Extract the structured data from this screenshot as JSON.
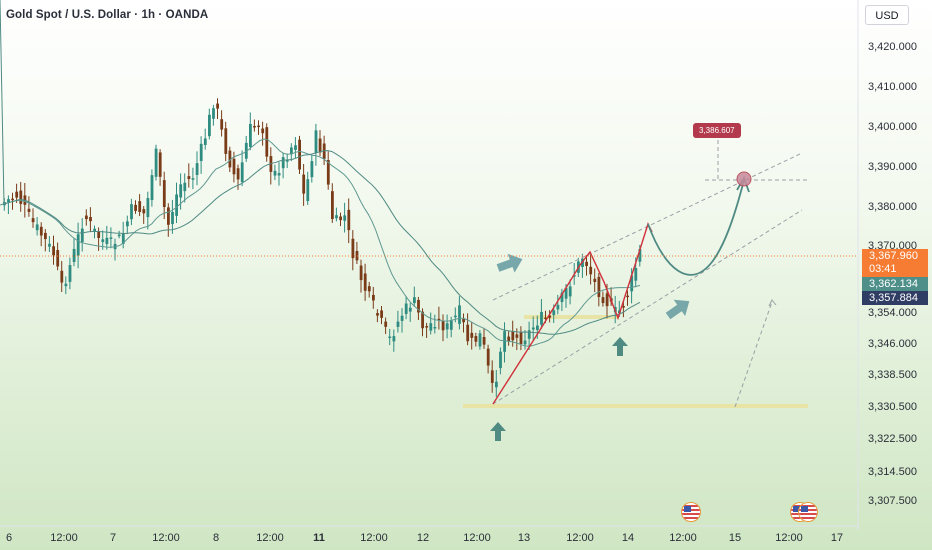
{
  "header": {
    "symbol_title": "Gold Spot / U.S. Dollar · 1h · OANDA"
  },
  "currency_button": "USD",
  "price_axis": {
    "ticks": [
      "3,420.000",
      "3,410.000",
      "3,400.000",
      "3,390.000",
      "3,380.000",
      "3,370.000",
      "3,354.000",
      "3,346.000",
      "3,338.500",
      "3,330.500",
      "3,322.500",
      "3,314.500",
      "3,307.500"
    ],
    "current_price": "3,367.960",
    "countdown": "03:41",
    "ma_fast_value": "3,362.134",
    "ma_slow_value": "3,357.884"
  },
  "time_axis": {
    "ticks": [
      {
        "label": "6",
        "bold": false
      },
      {
        "label": "12:00",
        "bold": false
      },
      {
        "label": "7",
        "bold": false
      },
      {
        "label": "12:00",
        "bold": false
      },
      {
        "label": "8",
        "bold": false
      },
      {
        "label": "12:00",
        "bold": false
      },
      {
        "label": "11",
        "bold": true
      },
      {
        "label": "12:00",
        "bold": false
      },
      {
        "label": "12",
        "bold": false
      },
      {
        "label": "12:00",
        "bold": false
      },
      {
        "label": "13",
        "bold": false
      },
      {
        "label": "12:00",
        "bold": false
      },
      {
        "label": "14",
        "bold": false
      },
      {
        "label": "12:00",
        "bold": false
      },
      {
        "label": "15",
        "bold": false
      },
      {
        "label": "12:00",
        "bold": false
      },
      {
        "label": "17",
        "bold": false
      }
    ]
  },
  "annotation": {
    "target_note": "3,386.607"
  },
  "colors": {
    "bull": "#2f8c80",
    "bear": "#7a3b19",
    "price_line": "#f57c32",
    "ma_fast": "#5f9891",
    "ma_slow": "#4f8a83",
    "path": "#d0303a",
    "arrow": "#6b9fa4",
    "support": "#e8e2a0"
  },
  "icons": [
    "us-flag-event-icon",
    "up-arrow-marker-icon",
    "diagonal-arrow-icon"
  ]
}
